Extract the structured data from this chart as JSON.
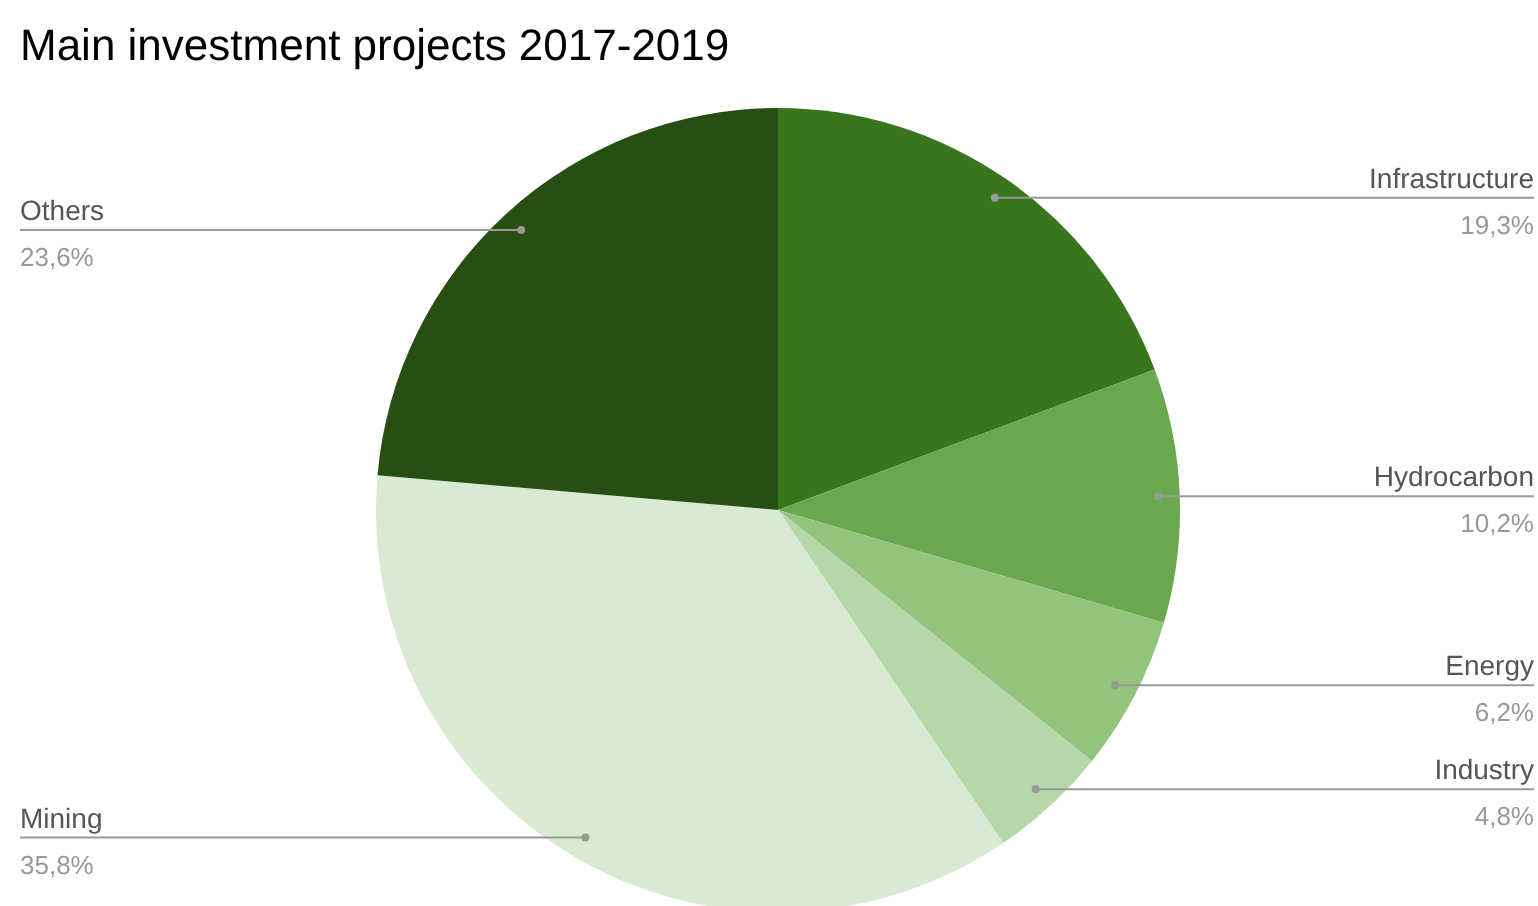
{
  "chart_data": {
    "type": "pie",
    "title": "Main investment projects 2017-2019",
    "categories": [
      "Infrastructure",
      "Hydrocarbon",
      "Energy",
      "Industry",
      "Mining",
      "Others"
    ],
    "values": [
      19.3,
      10.2,
      6.2,
      4.8,
      35.8,
      23.6
    ],
    "value_labels": [
      "19,3%",
      "10,2%",
      "6,2%",
      "4,8%",
      "35,8%",
      "23,6%"
    ],
    "colors": [
      "#38761d",
      "#6aa84f",
      "#93c47d",
      "#b6d7a8",
      "#d9ead3",
      "#274e13"
    ]
  }
}
